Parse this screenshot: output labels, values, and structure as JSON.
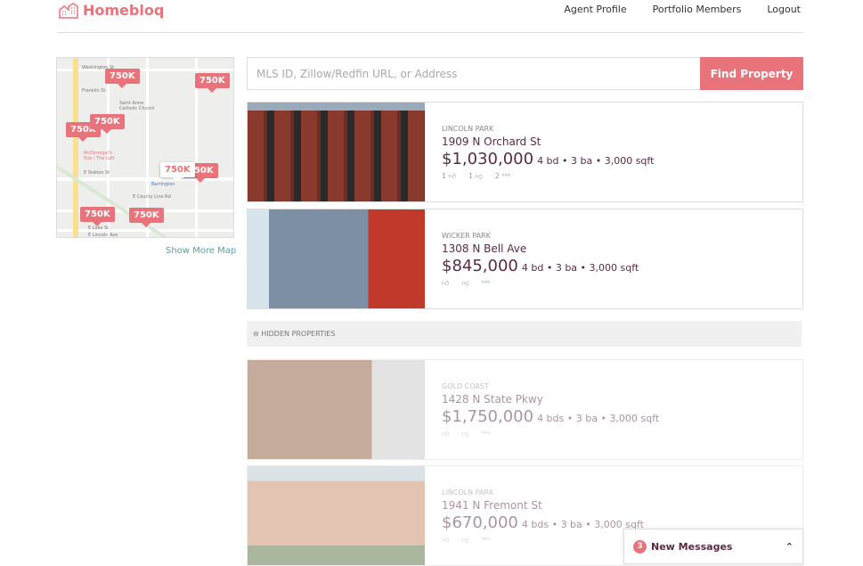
{
  "brand": {
    "name": "Homebloq",
    "color": "#e8737a",
    "logo_icon": "building-icon"
  },
  "nav": [
    "Agent Profile",
    "Portfolio Members",
    "Logout"
  ],
  "map": {
    "pins": [
      "750K",
      "750K",
      "750K",
      "750K",
      "750K",
      "750K",
      "750K",
      "750K"
    ],
    "labels": [
      "Washington St",
      "Franklin St",
      "Saint Anne Catholic Church",
      "E County Line Rd",
      "McDonogal's Pub | The Loft",
      "Barrington",
      "E Station St",
      "E Lake St",
      "E Lincoln Ave"
    ],
    "show_more": "Show More Map"
  },
  "search": {
    "placeholder": "MLS ID, Zillow/Redfin URL, or Address",
    "value": "",
    "button": "Find Property"
  },
  "listings": [
    {
      "hood": "Lincoln Park",
      "address": "1909 N Orchard St",
      "price": "$1,030,000",
      "details": "4 bd • 3 ba • 3,000 sqft",
      "likes": "1",
      "dislikes": "1",
      "comments": "2",
      "hidden": false
    },
    {
      "hood": "Wicker Park",
      "address": "1308 N Bell Ave",
      "price": "$845,000",
      "details": "4 bd • 3 ba • 3,000 sqft",
      "likes": "",
      "dislikes": "",
      "comments": "",
      "hidden": false
    }
  ],
  "hidden_label": "HIDDEN PROPERTIES",
  "hidden_listings": [
    {
      "hood": "Gold Coast",
      "address": "1428 N State Pkwy",
      "price": "$1,750,000",
      "details": "4 bds • 3 ba • 3,000 sqft"
    },
    {
      "hood": "Lincoln Park",
      "address": "1941 N Fremont St",
      "price": "$670,000",
      "details": "4 bds • 3 ba • 3,000 sqft"
    }
  ],
  "messages": {
    "count": "3",
    "label": "New Messages"
  }
}
